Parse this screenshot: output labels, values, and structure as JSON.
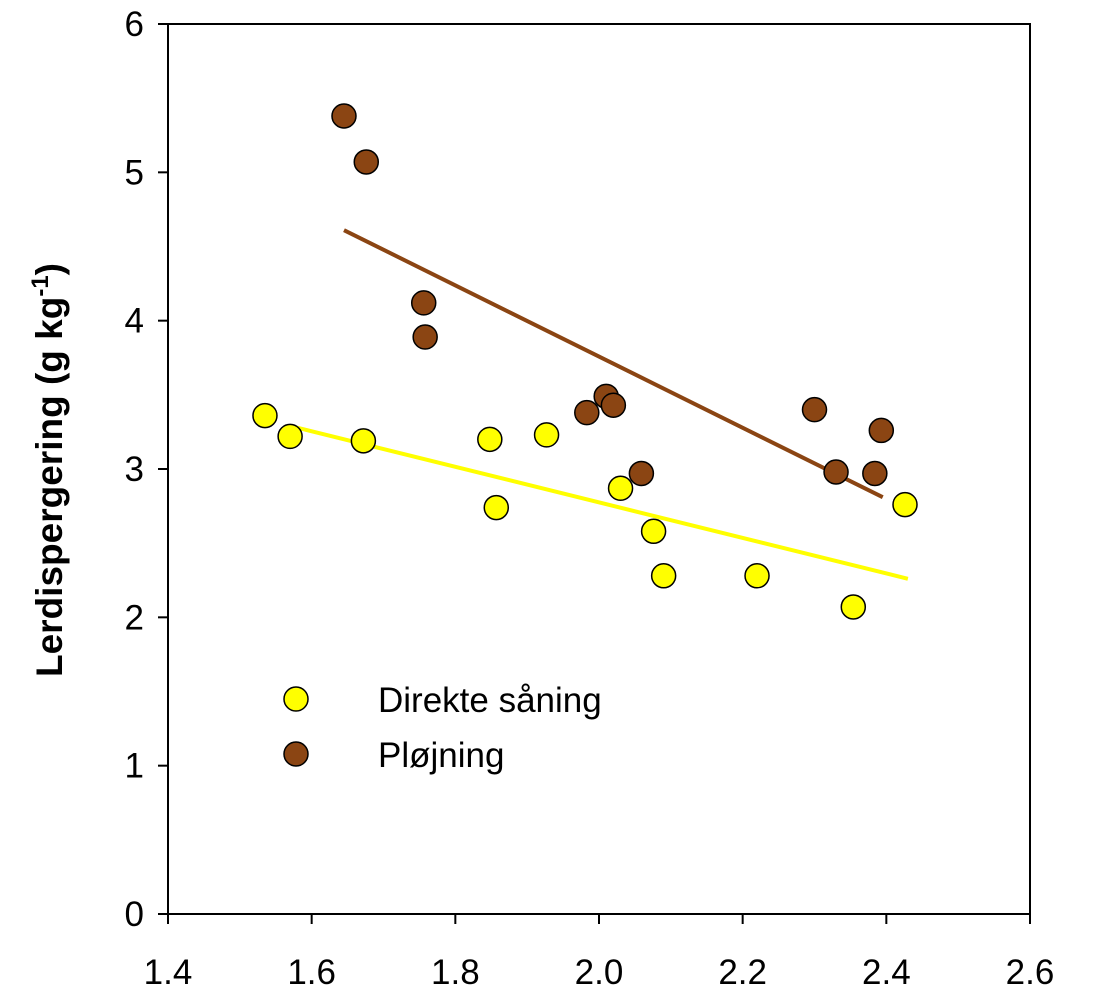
{
  "chart_data": {
    "type": "scatter",
    "title": "",
    "xlabel": "",
    "ylabel": "Lerdispergering (g kg",
    "ylabel_superscript": "-1",
    "ylabel_close": ")",
    "xlim": [
      1.4,
      2.6
    ],
    "ylim": [
      0,
      6
    ],
    "x_ticks": [
      "1.4",
      "1.6",
      "1.8",
      "2.0",
      "2.2",
      "2.4",
      "2.6"
    ],
    "y_ticks": [
      "0",
      "1",
      "2",
      "3",
      "4",
      "5",
      "6"
    ],
    "grid": false,
    "legend_position": "lower-left",
    "series": [
      {
        "name": "Direkte såning",
        "color": "#ffff00",
        "points": [
          [
            1.535,
            3.36
          ],
          [
            1.57,
            3.22
          ],
          [
            1.672,
            3.19
          ],
          [
            1.848,
            3.2
          ],
          [
            1.857,
            2.74
          ],
          [
            1.927,
            3.23
          ],
          [
            2.03,
            2.87
          ],
          [
            2.076,
            2.58
          ],
          [
            2.09,
            2.28
          ],
          [
            2.22,
            2.28
          ],
          [
            2.354,
            2.07
          ],
          [
            2.426,
            2.76
          ]
        ],
        "trendline": {
          "x": [
            1.57,
            2.43
          ],
          "y": [
            3.29,
            2.26
          ],
          "color": "#ffff00"
        }
      },
      {
        "name": "Pløjning",
        "color": "#8b4513",
        "points": [
          [
            1.645,
            5.38
          ],
          [
            1.676,
            5.07
          ],
          [
            1.756,
            4.12
          ],
          [
            1.758,
            3.89
          ],
          [
            1.983,
            3.38
          ],
          [
            2.01,
            3.49
          ],
          [
            2.02,
            3.43
          ],
          [
            2.059,
            2.97
          ],
          [
            2.3,
            3.4
          ],
          [
            2.33,
            2.98
          ],
          [
            2.384,
            2.97
          ],
          [
            2.393,
            3.26
          ]
        ],
        "trendline": {
          "x": [
            1.645,
            2.395
          ],
          "y": [
            4.61,
            2.81
          ],
          "color": "#8b4513"
        }
      }
    ]
  }
}
